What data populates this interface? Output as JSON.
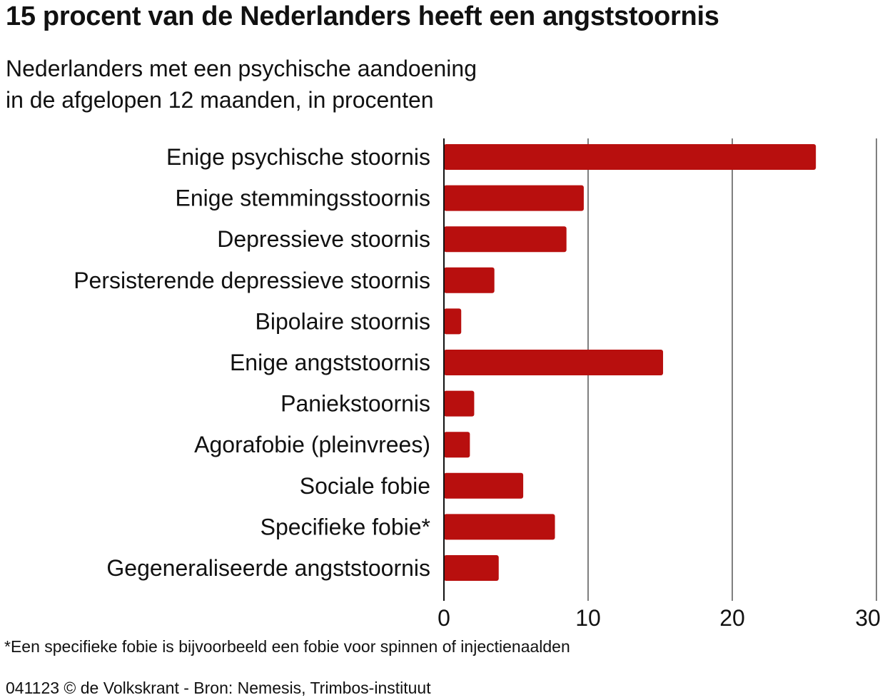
{
  "chart_data": {
    "type": "bar",
    "orientation": "horizontal",
    "title": "15 procent van de Nederlanders heeft een angststoornis",
    "subtitle": [
      "Nederlanders met een psychische aandoening",
      "in de afgelopen 12 maanden, in procenten"
    ],
    "categories": [
      "Enige psychische stoornis",
      "Enige stemmingsstoornis",
      "Depressieve stoornis",
      "Persisterende depressieve stoornis",
      "Bipolaire stoornis",
      "Enige angststoornis",
      "Paniekstoornis",
      "Agorafobie (pleinvrees)",
      "Sociale fobie",
      "Specifieke fobie*",
      "Gegeneraliseerde angststoornis"
    ],
    "values": [
      25.8,
      9.7,
      8.5,
      3.5,
      1.2,
      15.2,
      2.1,
      1.8,
      5.5,
      7.7,
      3.8
    ],
    "xlim": [
      0,
      30
    ],
    "xticks": [
      "0",
      "10",
      "20",
      "30"
    ],
    "grid": "vertical",
    "bar_color": "#b80f0e",
    "footnote": "*Een specifieke fobie is bijvoorbeeld een fobie voor spinnen of injectienaalden",
    "source": "041123 © de Volkskrant - Bron: Nemesis, Trimbos-instituut"
  }
}
